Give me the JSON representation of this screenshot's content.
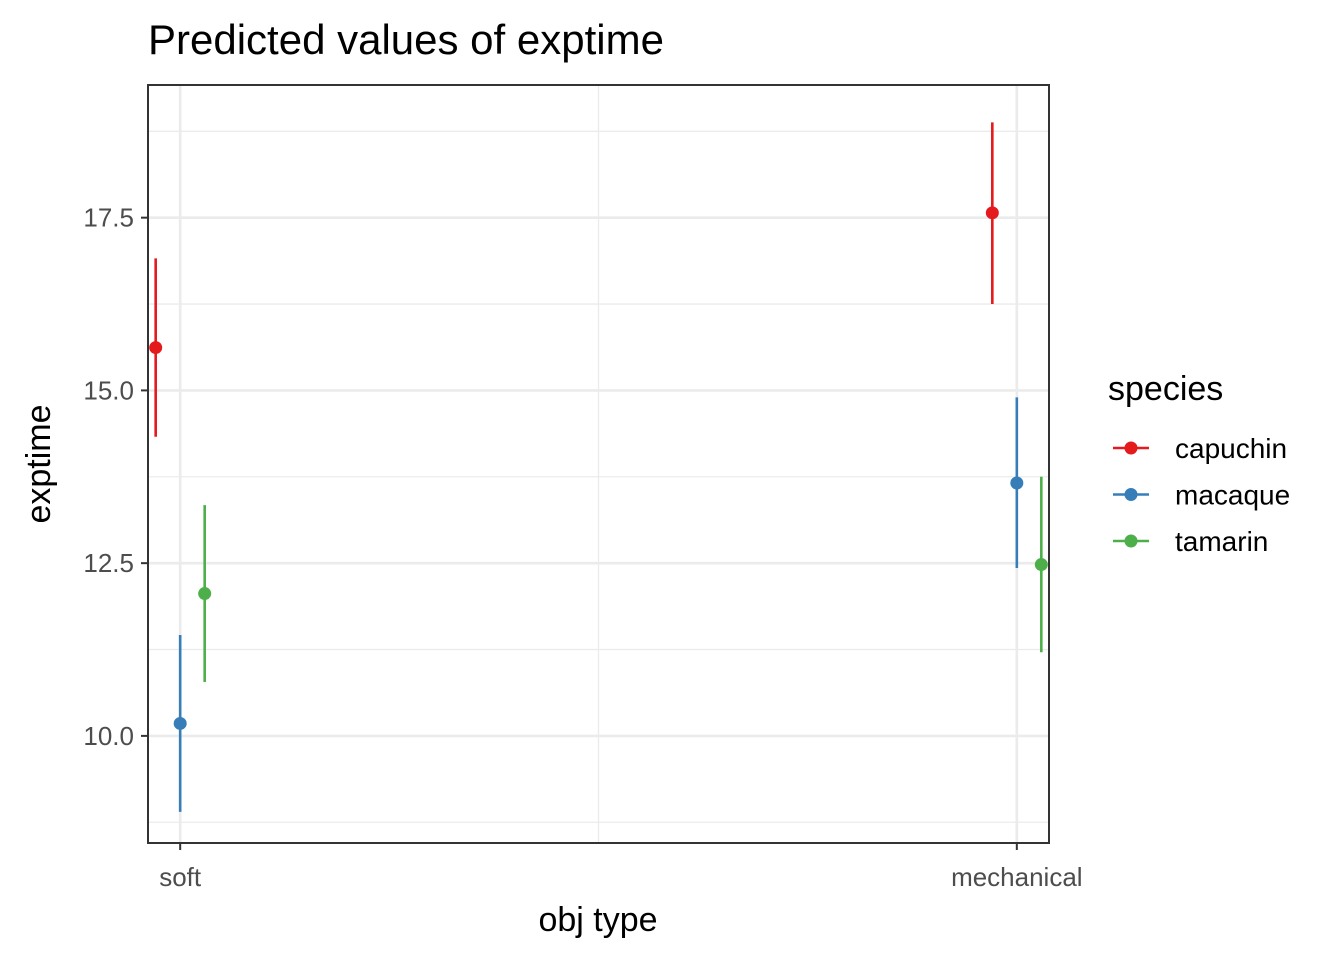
{
  "chart_data": {
    "type": "scatter",
    "title": "Predicted values of exptime",
    "xlabel": "obj type",
    "ylabel": "exptime",
    "categories": [
      "soft",
      "mechanical"
    ],
    "yticks": [
      10.0,
      12.5,
      15.0,
      17.5
    ],
    "ytick_labels": [
      "10.0",
      "12.5",
      "15.0",
      "17.5"
    ],
    "ylim": [
      8.45,
      19.42
    ],
    "grid": true,
    "legend_title": "species",
    "legend_position": "right",
    "series": [
      {
        "name": "capuchin",
        "color": "#E41A1C",
        "values": [
          15.62,
          17.57
        ],
        "lower": [
          14.33,
          16.25
        ],
        "upper": [
          16.91,
          18.88
        ]
      },
      {
        "name": "macaque",
        "color": "#377EB8",
        "values": [
          10.18,
          13.66
        ],
        "lower": [
          8.9,
          12.43
        ],
        "upper": [
          11.46,
          14.9
        ]
      },
      {
        "name": "tamarin",
        "color": "#4DAF4A",
        "values": [
          12.06,
          12.48
        ],
        "lower": [
          10.78,
          11.21
        ],
        "upper": [
          13.34,
          13.75
        ]
      }
    ]
  }
}
